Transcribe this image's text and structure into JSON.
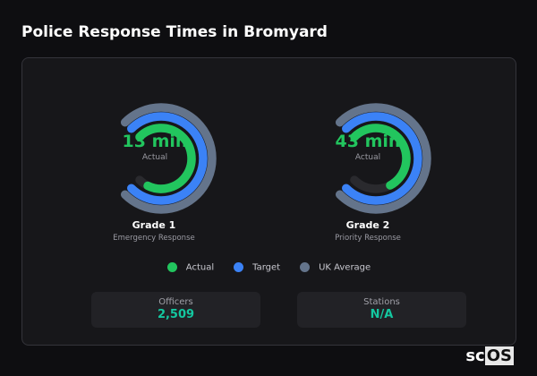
{
  "title": "Police Response Times in Bromyard",
  "chart_data": [
    {
      "type": "radial-bar",
      "name": "Grade 1",
      "description": "Emergency Response",
      "center_value": "13 min",
      "center_label": "Actual",
      "series": [
        {
          "name": "Actual",
          "fraction": 0.93,
          "color": "#22c55e"
        },
        {
          "name": "Target",
          "fraction": 1.0,
          "color": "#3b82f6"
        },
        {
          "name": "UK Average",
          "fraction": 1.0,
          "color": "#64748b"
        }
      ]
    },
    {
      "type": "radial-bar",
      "name": "Grade 2",
      "description": "Priority Response",
      "center_value": "43 min",
      "center_label": "Actual",
      "series": [
        {
          "name": "Actual",
          "fraction": 0.73,
          "color": "#22c55e"
        },
        {
          "name": "Target",
          "fraction": 1.0,
          "color": "#3b82f6"
        },
        {
          "name": "UK Average",
          "fraction": 1.0,
          "color": "#64748b"
        }
      ]
    }
  ],
  "legend": [
    {
      "label": "Actual",
      "color": "#22c55e"
    },
    {
      "label": "Target",
      "color": "#3b82f6"
    },
    {
      "label": "UK Average",
      "color": "#64748b"
    }
  ],
  "stats": [
    {
      "label": "Officers",
      "value": "2,509"
    },
    {
      "label": "Stations",
      "value": "N/A"
    }
  ],
  "logo": "scOS"
}
